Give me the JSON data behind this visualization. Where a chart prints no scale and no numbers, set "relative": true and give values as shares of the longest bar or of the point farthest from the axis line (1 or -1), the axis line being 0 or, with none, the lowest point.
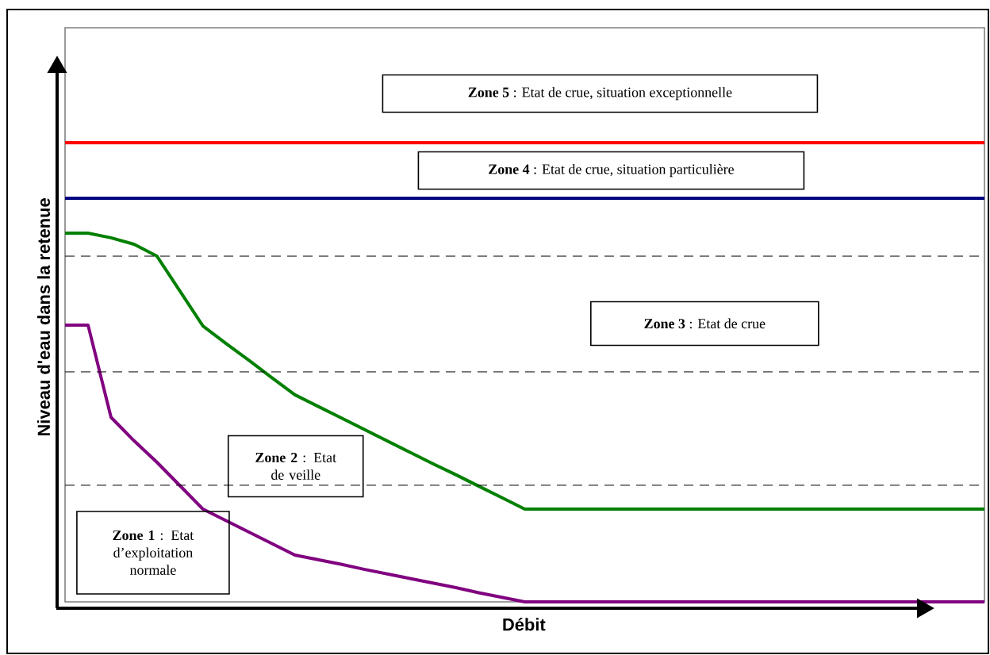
{
  "chart_data": {
    "type": "line",
    "relative": true,
    "xlabel": "Débit",
    "ylabel": "Niveau d'eau dans la retenue",
    "categories": [
      null,
      null,
      null,
      null,
      null,
      null,
      null,
      null,
      null,
      null,
      null,
      null,
      null,
      null,
      null,
      null,
      null,
      null,
      null,
      null,
      null,
      null,
      null,
      null,
      null,
      null,
      null,
      null,
      null,
      null,
      null,
      null,
      null,
      null,
      null,
      null,
      null,
      null,
      null,
      null,
      null
    ],
    "series": [
      {
        "color": "#ff0000",
        "values": [
          1,
          1,
          1,
          1,
          1,
          1,
          1,
          1,
          1,
          1,
          1,
          1,
          1,
          1,
          1,
          1,
          1,
          1,
          1,
          1,
          1,
          1,
          1,
          1,
          1,
          1,
          1,
          1,
          1,
          1,
          1,
          1,
          1,
          1,
          1,
          1,
          1,
          1,
          1,
          1,
          1
        ]
      },
      {
        "color": "#000080",
        "values": [
          0.879,
          0.879,
          0.879,
          0.879,
          0.879,
          0.879,
          0.879,
          0.879,
          0.879,
          0.879,
          0.879,
          0.879,
          0.879,
          0.879,
          0.879,
          0.879,
          0.879,
          0.879,
          0.879,
          0.879,
          0.879,
          0.879,
          0.879,
          0.879,
          0.879,
          0.879,
          0.879,
          0.879,
          0.879,
          0.879,
          0.879,
          0.879,
          0.879,
          0.879,
          0.879,
          0.879,
          0.879,
          0.879,
          0.879,
          0.879,
          0.879
        ]
      },
      {
        "color": "#008000",
        "values": [
          0.803,
          0.803,
          0.793,
          0.779,
          0.753,
          0.677,
          0.601,
          0.563,
          0.526,
          0.488,
          0.451,
          0.426,
          0.401,
          0.376,
          0.351,
          0.326,
          0.301,
          0.277,
          0.252,
          0.227,
          0.202,
          0.202,
          0.202,
          0.202,
          0.202,
          0.202,
          0.202,
          0.202,
          0.202,
          0.202,
          0.202,
          0.202,
          0.202,
          0.202,
          0.202,
          0.202,
          0.202,
          0.202,
          0.202,
          0.202,
          0.202
        ]
      },
      {
        "color": "#800080",
        "values": [
          0.603,
          0.603,
          0.402,
          0.351,
          0.304,
          0.253,
          0.202,
          0.177,
          0.152,
          0.127,
          0.102,
          0.092,
          0.082,
          0.071,
          0.061,
          0.051,
          0.041,
          0.031,
          0.02,
          0.01,
          0,
          0,
          0,
          0,
          0,
          0,
          0,
          0,
          0,
          0,
          0,
          0,
          0,
          0,
          0,
          0,
          0,
          0,
          0,
          0,
          0
        ]
      }
    ],
    "ref_lines": [
      {
        "axis": "y",
        "value": 0.753,
        "color": "#000000",
        "line_style": "dashed"
      },
      {
        "axis": "y",
        "value": 0.501,
        "color": "#000000",
        "line_style": "dashed"
      },
      {
        "axis": "y",
        "value": 0.254,
        "color": "#000000",
        "line_style": "dashed"
      }
    ],
    "annotations": [
      "**Zone 5** : Etat de crue, situation exceptionnelle",
      "**Zone 4** : Etat de crue, situation particulière",
      "**Zone 3** : Etat de crue",
      "**Zone 2** : Etat de veille",
      "**Zone 1** : Etat d’exploitation normale"
    ]
  }
}
